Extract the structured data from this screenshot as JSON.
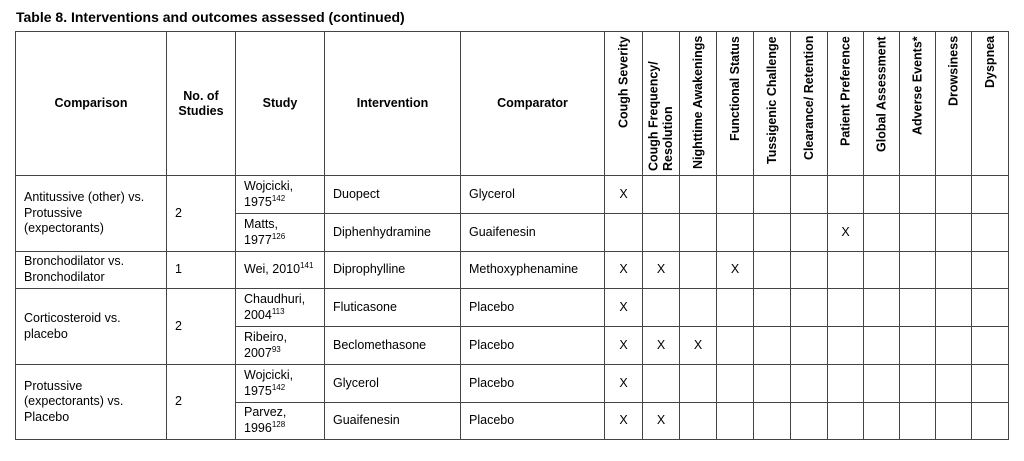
{
  "table": {
    "caption": "Table 8. Interventions and outcomes assessed (continued)",
    "headers": {
      "comparison": "Comparison",
      "no_of_studies": "No. of Studies",
      "study": "Study",
      "intervention": "Intervention",
      "comparator": "Comparator",
      "outcomes": [
        "Cough Severity",
        "Cough Frequency/ Resolution",
        "Nighttime Awakenings",
        "Functional Status",
        "Tussigenic Challenge",
        "Clearance/ Retention",
        "Patient Preference",
        "Global Assessment",
        "Adverse Events*",
        "Drowsiness",
        "Dyspnea"
      ]
    },
    "groups": [
      {
        "comparison": "Antitussive (other) vs. Protussive (expectorants)",
        "n": "2",
        "studies": [
          {
            "name": "Wojcicki, 1975",
            "ref": "142",
            "intervention": "Duopect",
            "comparator": "Glycerol",
            "marks": [
              "X",
              "",
              "",
              "",
              "",
              "",
              "",
              "",
              "",
              "",
              ""
            ]
          },
          {
            "name": "Matts, 1977",
            "ref": "126",
            "intervention": "Diphenhydramine",
            "comparator": "Guaifenesin",
            "marks": [
              "",
              "",
              "",
              "",
              "",
              "",
              "X",
              "",
              "",
              "",
              ""
            ]
          }
        ]
      },
      {
        "comparison": "Bronchodilator vs. Bronchodilator",
        "n": "1",
        "studies": [
          {
            "name": "Wei, 2010",
            "ref": "141",
            "intervention": "Diprophylline",
            "comparator": "Methoxyphenamine",
            "marks": [
              "X",
              "X",
              "",
              "X",
              "",
              "",
              "",
              "",
              "",
              "",
              ""
            ]
          }
        ]
      },
      {
        "comparison": "Corticosteroid vs. placebo",
        "n": "2",
        "studies": [
          {
            "name": "Chaudhuri, 2004",
            "ref": "113",
            "intervention": "Fluticasone",
            "comparator": "Placebo",
            "marks": [
              "X",
              "",
              "",
              "",
              "",
              "",
              "",
              "",
              "",
              "",
              ""
            ]
          },
          {
            "name": "Ribeiro, 2007",
            "ref": "93",
            "intervention": "Beclomethasone",
            "comparator": "Placebo",
            "marks": [
              "X",
              "X",
              "X",
              "",
              "",
              "",
              "",
              "",
              "",
              "",
              ""
            ]
          }
        ]
      },
      {
        "comparison": "Protussive (expectorants) vs. Placebo",
        "n": "2",
        "studies": [
          {
            "name": "Wojcicki, 1975",
            "ref": "142",
            "intervention": "Glycerol",
            "comparator": "Placebo",
            "marks": [
              "X",
              "",
              "",
              "",
              "",
              "",
              "",
              "",
              "",
              "",
              ""
            ]
          },
          {
            "name": "Parvez, 1996",
            "ref": "128",
            "intervention": "Guaifenesin",
            "comparator": "Placebo",
            "marks": [
              "X",
              "X",
              "",
              "",
              "",
              "",
              "",
              "",
              "",
              "",
              ""
            ]
          }
        ]
      }
    ]
  }
}
